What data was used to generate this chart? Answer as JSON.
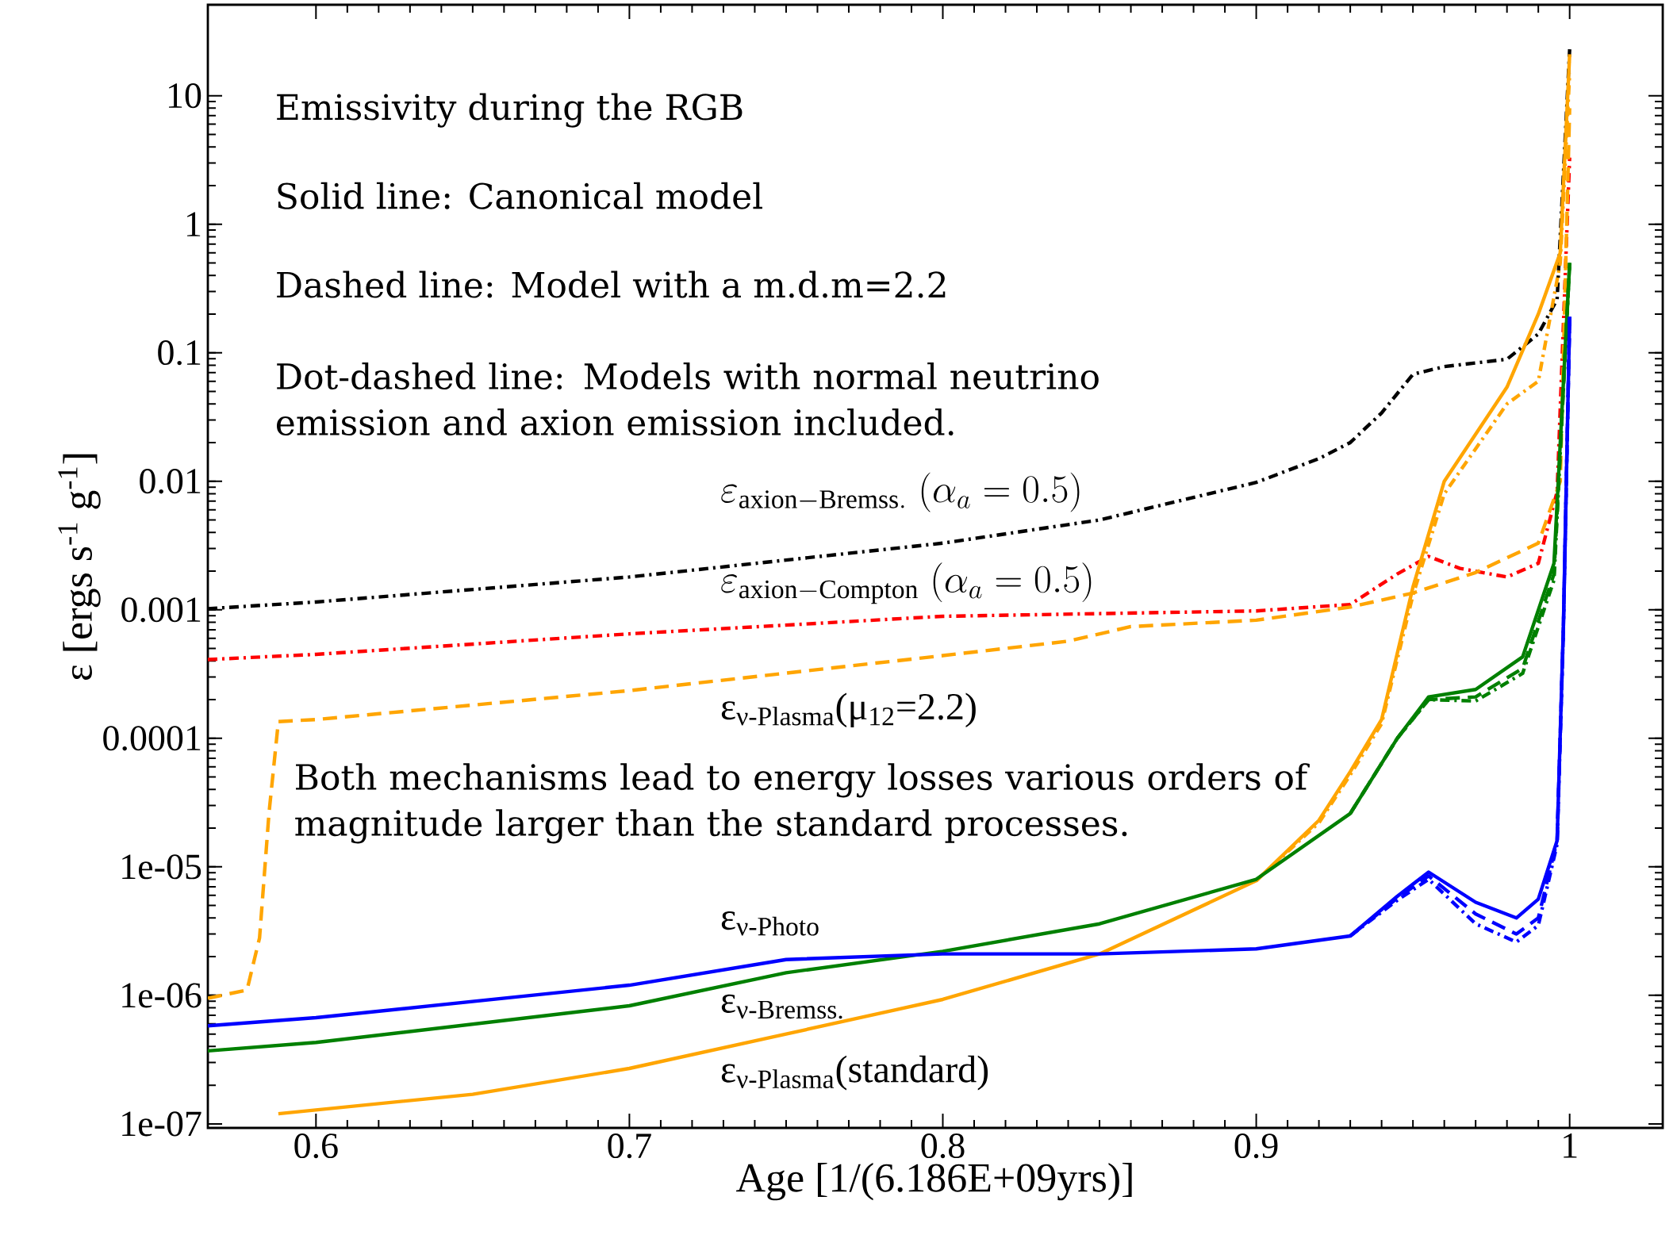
{
  "chart_data": {
    "type": "line",
    "xlabel": "Age [1/(6.186E+09yrs)]",
    "ylabel": "ε [ergs s$^{-1}$ g$^{-1}$]",
    "log": "y",
    "grid": false,
    "marker": "none",
    "xlim": [
      0.5655,
      1.0297
    ],
    "ylim": [
      9.3e-08,
      51
    ],
    "xticks": [
      0.6,
      0.7,
      0.8,
      0.9,
      1
    ],
    "yticks": [
      {
        "value": 1e-07,
        "label": "1e-07"
      },
      {
        "value": 1e-06,
        "label": "1e-06"
      },
      {
        "value": 1e-05,
        "label": "1e-05"
      },
      0.0001,
      0.001,
      0.01,
      0.1,
      1,
      10
    ],
    "series": [
      {
        "color": "#000000",
        "line_style": "dashdot",
        "x": [
          0.5655,
          0.6,
          0.7,
          0.8,
          0.85,
          0.9,
          0.92,
          0.93,
          0.94,
          0.95,
          0.96,
          0.98,
          0.99,
          0.996,
          1.0
        ],
        "values": [
          0.00102,
          0.00115,
          0.0018,
          0.0033,
          0.005,
          0.0098,
          0.015,
          0.02,
          0.034,
          0.068,
          0.078,
          0.089,
          0.14,
          0.26,
          23
        ]
      },
      {
        "color": "#ff0000",
        "line_style": "dashdot",
        "x": [
          0.5655,
          0.6,
          0.7,
          0.8,
          0.9,
          0.93,
          0.945,
          0.955,
          0.965,
          0.98,
          0.99,
          0.996,
          1.0
        ],
        "values": [
          0.00041,
          0.00045,
          0.00065,
          0.00089,
          0.00098,
          0.0011,
          0.0019,
          0.0026,
          0.0021,
          0.0018,
          0.0023,
          0.0083,
          3.3
        ]
      },
      {
        "color": "#ffa500",
        "line_style": "dashed",
        "x": [
          0.5655,
          0.578,
          0.582,
          0.585,
          0.588,
          0.6,
          0.7,
          0.8,
          0.84,
          0.86,
          0.9,
          0.93,
          0.95,
          0.97,
          0.99,
          0.997,
          1.0
        ],
        "values": [
          9.5e-07,
          1.1e-06,
          2.8e-06,
          2.6e-05,
          0.000135,
          0.00014,
          0.000235,
          0.00044,
          0.00057,
          0.00074,
          0.00083,
          0.00105,
          0.00135,
          0.00195,
          0.0033,
          0.01,
          8
        ]
      },
      {
        "color": "#ffa500",
        "line_style": "solid",
        "x": [
          0.588,
          0.65,
          0.7,
          0.75,
          0.8,
          0.85,
          0.9,
          0.92,
          0.93,
          0.94,
          0.95,
          0.96,
          0.98,
          0.99,
          0.997,
          1.0
        ],
        "values": [
          1.2e-07,
          1.7e-07,
          2.7e-07,
          5e-07,
          9.3e-07,
          2.1e-06,
          7.8e-06,
          2.3e-05,
          5.5e-05,
          0.00014,
          0.0015,
          0.01,
          0.054,
          0.2,
          0.6,
          21
        ]
      },
      {
        "color": "#ffa500",
        "line_style": "dashdot",
        "x": [
          0.9,
          0.92,
          0.93,
          0.94,
          0.95,
          0.96,
          0.98,
          0.99,
          0.997,
          1.0
        ],
        "values": [
          7.8e-06,
          2.2e-05,
          5.2e-05,
          0.00013,
          0.0013,
          0.008,
          0.04,
          0.06,
          0.5,
          15
        ]
      },
      {
        "color": "#008000",
        "line_style": "solid",
        "x": [
          0.5655,
          0.6,
          0.7,
          0.75,
          0.8,
          0.85,
          0.9,
          0.93,
          0.945,
          0.955,
          0.97,
          0.985,
          0.995,
          1.0
        ],
        "values": [
          3.7e-07,
          4.3e-07,
          8.3e-07,
          1.5e-06,
          2.2e-06,
          3.6e-06,
          8e-06,
          2.6e-05,
          0.0001,
          0.00021,
          0.00024,
          0.00043,
          0.0023,
          0.5
        ]
      },
      {
        "color": "#008000",
        "line_style": "dashed",
        "x": [
          0.93,
          0.945,
          0.955,
          0.97,
          0.985,
          0.995,
          1.0
        ],
        "values": [
          2.6e-05,
          0.0001,
          0.0002,
          0.00021,
          0.00035,
          0.0019,
          0.5
        ]
      },
      {
        "color": "#008000",
        "line_style": "dashdot",
        "x": [
          0.93,
          0.945,
          0.955,
          0.97,
          0.985,
          0.995,
          1.0
        ],
        "values": [
          2.6e-05,
          0.0001,
          0.0002,
          0.000195,
          0.00032,
          0.0017,
          0.5
        ]
      },
      {
        "color": "#0000ff",
        "line_style": "solid",
        "x": [
          0.5655,
          0.6,
          0.7,
          0.75,
          0.8,
          0.85,
          0.9,
          0.93,
          0.945,
          0.955,
          0.97,
          0.983,
          0.99,
          0.996,
          0.998,
          1.0
        ],
        "values": [
          5.8e-07,
          6.7e-07,
          1.2e-06,
          1.9e-06,
          2.1e-06,
          2.1e-06,
          2.3e-06,
          2.9e-06,
          5.9e-06,
          9.1e-06,
          5.3e-06,
          4e-06,
          5.6e-06,
          1.6e-05,
          0.00074,
          0.19
        ]
      },
      {
        "color": "#0000ff",
        "line_style": "dashed",
        "x": [
          0.93,
          0.945,
          0.955,
          0.97,
          0.983,
          0.99,
          0.996,
          0.998,
          1.0
        ],
        "values": [
          2.9e-06,
          5.7e-06,
          8.5e-06,
          4.3e-06,
          3e-06,
          4e-06,
          1.6e-05,
          0.0007,
          0.19
        ]
      },
      {
        "color": "#0000ff",
        "line_style": "dashdot",
        "x": [
          0.93,
          0.945,
          0.955,
          0.97,
          0.983,
          0.99,
          0.996,
          0.998,
          1.0
        ],
        "values": [
          2.9e-06,
          5.5e-06,
          8e-06,
          3.6e-06,
          2.6e-06,
          3.5e-06,
          1.5e-05,
          0.0007,
          0.19
        ]
      }
    ],
    "annotations": [
      "Emissivity during the RGB",
      "Solid line: Canonical model",
      "Dashed line: Model with a  m.d.m=2.2",
      "Dot-dashed line: Models with normal neutrino emission and axion emission included.",
      "Both mechanisms lead to energy losses various orders of magnitude larger than the standard processes.",
      "\\varepsilon_{\\mathrm{axion-Bremss.}}\\;(\\alpha_{a}=0.5)",
      "\\varepsilon_{\\mathrm{axion-Compton}}\\;(\\alpha_{a}=0.5)",
      "ε$_{ν-Plasma}$(μ$_{12}$=2.2)",
      "ε$_{ν-Photo}$",
      "ε$_{ν-Bremss.}$",
      "ε$_{ν-Plasma}$(standard)"
    ]
  }
}
